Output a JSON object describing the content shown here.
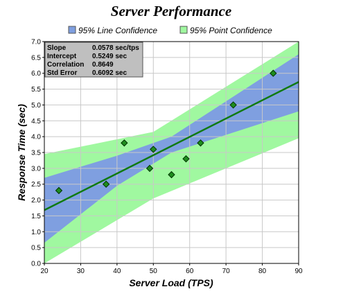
{
  "chart_data": {
    "type": "scatter",
    "title": "Server Performance",
    "xlabel": "Server Load (TPS)",
    "ylabel": "Response Time (sec)",
    "xlim": [
      20,
      90
    ],
    "ylim": [
      0,
      7
    ],
    "x_ticks": [
      "20",
      "30",
      "40",
      "50",
      "60",
      "70",
      "80",
      "90"
    ],
    "y_ticks": [
      "0.0",
      "0.5",
      "1.0",
      "1.5",
      "2.0",
      "2.5",
      "3.0",
      "3.5",
      "4.0",
      "4.5",
      "5.0",
      "5.5",
      "6.0",
      "6.5",
      "7.0"
    ],
    "grid": true,
    "legend_position": "top",
    "legend": [
      {
        "label": "95% Line Confidence",
        "color": "#7f9fe0"
      },
      {
        "label": "95% Point Confidence",
        "color": "#a0f8a0"
      }
    ],
    "points": {
      "x": [
        24,
        37,
        42,
        49,
        50,
        55,
        59,
        63,
        72,
        83
      ],
      "y": [
        2.3,
        2.5,
        3.8,
        3.0,
        3.6,
        2.8,
        3.3,
        3.8,
        5.0,
        6.0
      ],
      "color": "#1e8c1e"
    },
    "trend_line": {
      "slope": 0.0578,
      "intercept": 0.5249,
      "color": "#0f7a0f"
    },
    "confidence_bands": {
      "line": {
        "x": [
          20,
          40,
          55,
          90
        ],
        "lower": [
          0.65,
          2.45,
          3.5,
          4.8
        ],
        "upper": [
          2.7,
          3.4,
          4.0,
          6.6
        ]
      },
      "point": {
        "x": [
          20,
          50,
          90
        ],
        "lower": [
          0.0,
          2.05,
          3.95
        ],
        "upper": [
          3.45,
          4.15,
          7.0
        ]
      }
    },
    "stats": [
      {
        "label": "Slope",
        "value": "0.0578 sec/tps"
      },
      {
        "label": "Intercept",
        "value": "0.5249 sec"
      },
      {
        "label": "Correlation",
        "value": "0.8649"
      },
      {
        "label": "Std Error",
        "value": "0.6092 sec"
      }
    ],
    "colors": {
      "line_band": "#7f9fe0",
      "point_band": "#a0f8a0",
      "grid": "#c8c8c8"
    }
  }
}
